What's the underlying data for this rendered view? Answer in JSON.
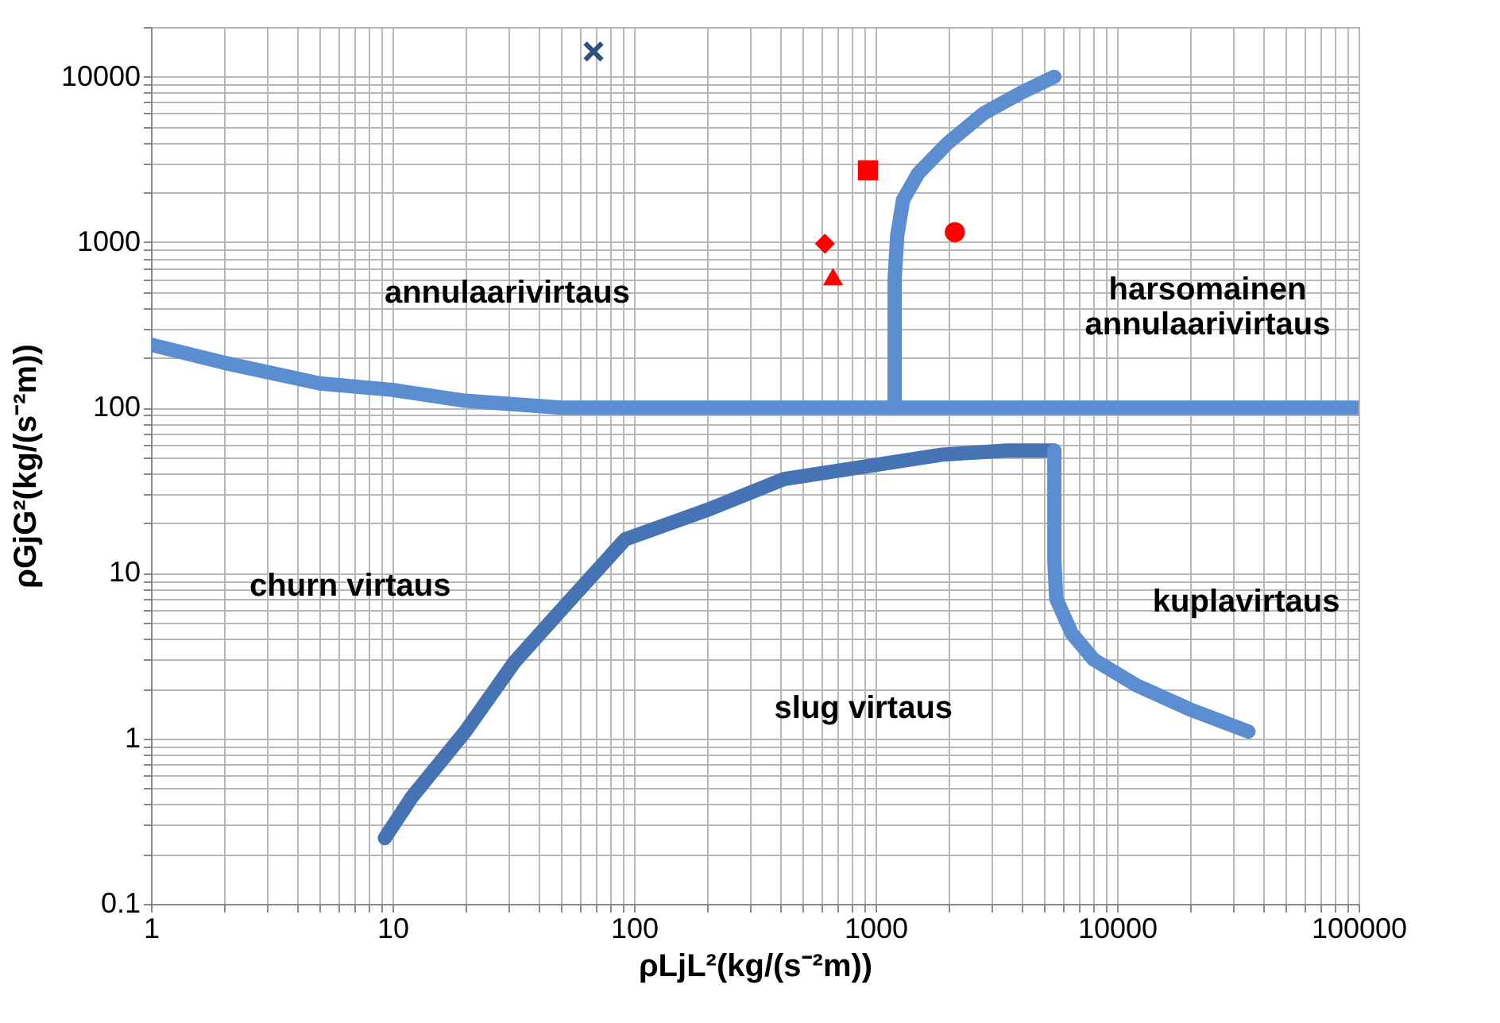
{
  "chart_data": {
    "type": "line",
    "xlabel": "ρLjL²(kg/(s⁻²m))",
    "ylabel": "ρGjG²(kg/(s⁻²m))",
    "log": "xy",
    "grid": true,
    "xlim": [
      1,
      100000
    ],
    "ylim": [
      0.1,
      20000
    ],
    "xticks": [
      1,
      {
        "value": 2,
        "label": null
      },
      {
        "value": 3,
        "label": null
      },
      {
        "value": 4,
        "label": null
      },
      {
        "value": 5,
        "label": null
      },
      {
        "value": 6,
        "label": null
      },
      {
        "value": 7,
        "label": null
      },
      {
        "value": 8,
        "label": null
      },
      {
        "value": 9,
        "label": null
      },
      10,
      {
        "value": 20,
        "label": null
      },
      {
        "value": 30,
        "label": null
      },
      {
        "value": 40,
        "label": null
      },
      {
        "value": 50,
        "label": null
      },
      {
        "value": 60,
        "label": null
      },
      {
        "value": 70,
        "label": null
      },
      {
        "value": 80,
        "label": null
      },
      {
        "value": 90,
        "label": null
      },
      100,
      {
        "value": 200,
        "label": null
      },
      {
        "value": 300,
        "label": null
      },
      {
        "value": 400,
        "label": null
      },
      {
        "value": 500,
        "label": null
      },
      {
        "value": 600,
        "label": null
      },
      {
        "value": 700,
        "label": null
      },
      {
        "value": 800,
        "label": null
      },
      {
        "value": 900,
        "label": null
      },
      1000,
      {
        "value": 2000,
        "label": null
      },
      {
        "value": 3000,
        "label": null
      },
      {
        "value": 4000,
        "label": null
      },
      {
        "value": 5000,
        "label": null
      },
      {
        "value": 6000,
        "label": null
      },
      {
        "value": 7000,
        "label": null
      },
      {
        "value": 8000,
        "label": null
      },
      {
        "value": 9000,
        "label": null
      },
      10000,
      {
        "value": 20000,
        "label": null
      },
      {
        "value": 30000,
        "label": null
      },
      {
        "value": 40000,
        "label": null
      },
      {
        "value": 50000,
        "label": null
      },
      {
        "value": 60000,
        "label": null
      },
      {
        "value": 70000,
        "label": null
      },
      {
        "value": 80000,
        "label": null
      },
      {
        "value": 90000,
        "label": null
      },
      100000
    ],
    "yticks": [
      0.1,
      {
        "value": 0.2,
        "label": null
      },
      {
        "value": 0.3,
        "label": null
      },
      {
        "value": 0.4,
        "label": null
      },
      {
        "value": 0.5,
        "label": null
      },
      {
        "value": 0.6,
        "label": null
      },
      {
        "value": 0.7,
        "label": null
      },
      {
        "value": 0.8,
        "label": null
      },
      {
        "value": 0.9,
        "label": null
      },
      1,
      {
        "value": 2,
        "label": null
      },
      {
        "value": 3,
        "label": null
      },
      {
        "value": 4,
        "label": null
      },
      {
        "value": 5,
        "label": null
      },
      {
        "value": 6,
        "label": null
      },
      {
        "value": 7,
        "label": null
      },
      {
        "value": 8,
        "label": null
      },
      {
        "value": 9,
        "label": null
      },
      10,
      {
        "value": 20,
        "label": null
      },
      {
        "value": 30,
        "label": null
      },
      {
        "value": 40,
        "label": null
      },
      {
        "value": 50,
        "label": null
      },
      {
        "value": 60,
        "label": null
      },
      {
        "value": 70,
        "label": null
      },
      {
        "value": 80,
        "label": null
      },
      {
        "value": 90,
        "label": null
      },
      100,
      {
        "value": 200,
        "label": null
      },
      {
        "value": 300,
        "label": null
      },
      {
        "value": 400,
        "label": null
      },
      {
        "value": 500,
        "label": null
      },
      {
        "value": 600,
        "label": null
      },
      {
        "value": 700,
        "label": null
      },
      {
        "value": 800,
        "label": null
      },
      {
        "value": 900,
        "label": null
      },
      1000,
      {
        "value": 2000,
        "label": null
      },
      {
        "value": 3000,
        "label": null
      },
      {
        "value": 4000,
        "label": null
      },
      {
        "value": 5000,
        "label": null
      },
      {
        "value": 6000,
        "label": null
      },
      {
        "value": 7000,
        "label": null
      },
      {
        "value": 8000,
        "label": null
      },
      {
        "value": 9000,
        "label": null
      },
      10000,
      {
        "value": 20000,
        "label": null
      }
    ],
    "series": [
      {
        "color": "#5b8ed1",
        "x": [
          1,
          2,
          5,
          10,
          20,
          50,
          100000
        ],
        "values": [
          240,
          187,
          140,
          128,
          110,
          100,
          100
        ]
      },
      {
        "color": "#5b8ed1",
        "x": [
          1200,
          1200,
          1230,
          1300,
          1500,
          2000,
          2800,
          4000,
          5500
        ],
        "values": [
          100,
          600,
          1100,
          1800,
          2600,
          4000,
          6000,
          8000,
          10000
        ]
      },
      {
        "color": "#4673b3",
        "x": [
          9.3,
          12,
          20,
          32,
          50,
          92,
          200,
          418,
          1000,
          1890,
          3500,
          5500
        ],
        "values": [
          0.25,
          0.44,
          1.1,
          2.9,
          6,
          16,
          24,
          37,
          45,
          52,
          55,
          55
        ]
      },
      {
        "color": "#5b8ed1",
        "x": [
          5500,
          5500,
          5600,
          6500,
          8000,
          12000,
          20000,
          35000
        ],
        "values": [
          55,
          12,
          7,
          4.3,
          3,
          2.1,
          1.5,
          1.1
        ]
      },
      {
        "type": "scatter",
        "marker": "cross",
        "color": "#2f4f7f",
        "x": [
          68
        ],
        "values": [
          14200
        ]
      },
      {
        "type": "scatter",
        "marker": "square",
        "color": "#ff0000",
        "x": [
          930
        ],
        "values": [
          2720
        ]
      },
      {
        "type": "scatter",
        "marker": "circle",
        "color": "#ff0000",
        "x": [
          2130
        ],
        "values": [
          1150
        ]
      },
      {
        "type": "scatter",
        "marker": "diamond",
        "color": "#ff0000",
        "x": [
          617
        ],
        "values": [
          980
        ]
      },
      {
        "type": "scatter",
        "marker": "triangle",
        "color": "#ff0000",
        "x": [
          667
        ],
        "values": [
          620
        ]
      }
    ],
    "annotations": [
      "annulaarivirtaus",
      "harsomainen\nannulaarivirtaus",
      "churn virtaus",
      "kuplavirtaus",
      "slug virtaus"
    ]
  }
}
